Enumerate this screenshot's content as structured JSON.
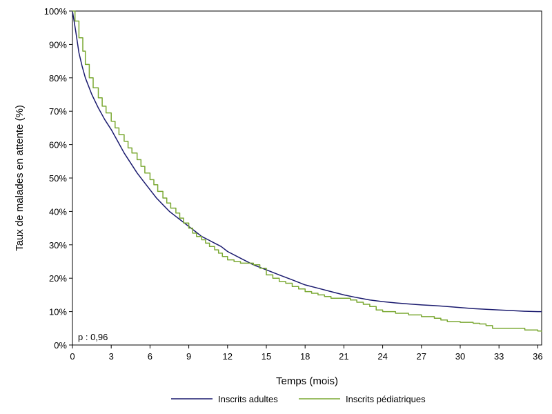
{
  "chart_data": {
    "type": "line",
    "title": "",
    "xlabel": "Temps (mois)",
    "ylabel": "Taux de malades en attente (%)",
    "xlim": [
      0,
      36.3
    ],
    "ylim": [
      0,
      100
    ],
    "x_ticks": [
      0,
      3,
      6,
      9,
      12,
      15,
      18,
      21,
      24,
      27,
      30,
      33,
      36
    ],
    "y_ticks": [
      0,
      10,
      20,
      30,
      40,
      50,
      60,
      70,
      80,
      90,
      100
    ],
    "y_tick_labels": [
      "0%",
      "10%",
      "20%",
      "30%",
      "40%",
      "50%",
      "60%",
      "70%",
      "80%",
      "90%",
      "100%"
    ],
    "grid": false,
    "legend_position": "bottom",
    "annotation": "p : 0,96",
    "series": [
      {
        "name": "Inscrits adultes",
        "color": "#1a1a6e",
        "step": false,
        "x": [
          0,
          0.25,
          0.5,
          0.75,
          1,
          1.5,
          2,
          2.5,
          3,
          3.5,
          4,
          4.5,
          5,
          5.5,
          6,
          6.5,
          7,
          7.5,
          8,
          8.5,
          9,
          9.5,
          10,
          10.5,
          11,
          11.5,
          12,
          13,
          14,
          15,
          16,
          17,
          18,
          19,
          20,
          21,
          22,
          23,
          24,
          25,
          26,
          27,
          28,
          29,
          30,
          31,
          32,
          33,
          34,
          35,
          36,
          36.3
        ],
        "y": [
          100,
          94,
          87.5,
          83.5,
          80,
          75,
          71,
          67.5,
          64.5,
          61,
          57.5,
          54.5,
          51.5,
          49,
          46.5,
          44,
          42,
          40,
          38.5,
          37,
          35.5,
          34,
          32.5,
          31.5,
          30.5,
          29.5,
          28,
          26,
          24,
          22.5,
          21,
          19.5,
          18,
          17,
          16,
          15,
          14.2,
          13.5,
          13,
          12.6,
          12.3,
          12,
          11.8,
          11.5,
          11.2,
          10.9,
          10.7,
          10.5,
          10.3,
          10.1,
          10,
          10
        ]
      },
      {
        "name": "Inscrits pédiatriques",
        "color": "#7aa832",
        "step": true,
        "x": [
          0,
          0.2,
          0.5,
          0.8,
          1,
          1.3,
          1.6,
          2,
          2.3,
          2.6,
          3,
          3.3,
          3.6,
          4,
          4.3,
          4.6,
          5,
          5.3,
          5.6,
          6,
          6.3,
          6.6,
          7,
          7.3,
          7.6,
          8,
          8.3,
          8.6,
          9,
          9.3,
          9.6,
          10,
          10.3,
          10.6,
          11,
          11.3,
          11.6,
          12,
          12.5,
          13,
          13.5,
          14,
          14.5,
          15,
          15.5,
          16,
          16.5,
          17,
          17.5,
          18,
          18.5,
          19,
          19.5,
          20,
          21,
          21.5,
          22,
          22.5,
          23,
          23.5,
          24,
          25,
          26,
          27,
          28,
          28.5,
          29,
          30,
          31,
          31.5,
          32,
          32.5,
          33,
          34,
          34.5,
          35,
          36,
          36.3
        ],
        "y": [
          100,
          97,
          92,
          88,
          84,
          80,
          77,
          74,
          71.5,
          69.5,
          67,
          65,
          63,
          61,
          59,
          57.5,
          55.5,
          53.5,
          51.5,
          49.5,
          48,
          46,
          44,
          42.5,
          41,
          39.5,
          38,
          36.5,
          35,
          33.5,
          32.5,
          31.5,
          30.5,
          29.5,
          28.5,
          27.5,
          26.5,
          25.5,
          25,
          24.5,
          24.5,
          24,
          23,
          21,
          20,
          19,
          18.5,
          17.5,
          16.8,
          16,
          15.5,
          15,
          14.5,
          14,
          14,
          13.5,
          12.8,
          12.2,
          11.5,
          10.5,
          10,
          9.5,
          9,
          8.5,
          8,
          7.5,
          7,
          6.8,
          6.5,
          6.3,
          5.8,
          5,
          5,
          5,
          5,
          4.5,
          4.2,
          4
        ]
      }
    ]
  }
}
